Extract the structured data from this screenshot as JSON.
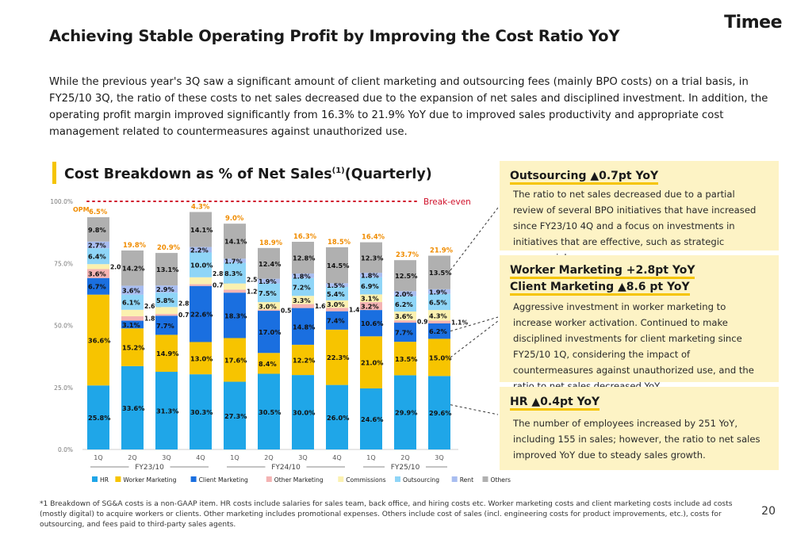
{
  "header": {
    "title": "Achieving Stable Operating Profit by Improving the Cost Ratio YoY",
    "logo": "Timee"
  },
  "intro": "While the previous year's 3Q saw a significant amount of client marketing and outsourcing fees (mainly BPO costs) on a trial basis, in FY25/10 3Q, the ratio of these costs to net sales decreased due to the expansion of net sales and disciplined investment. In addition, the operating profit margin improved significantly from 16.3% to 21.9% YoY due to improved sales productivity and appropriate cost management related to countermeasures against unauthorized use.",
  "chart_heading": {
    "text": "Cost Breakdown as % of Net Sales",
    "sup": "(1)",
    "suffix": "(Quarterly)"
  },
  "colors": {
    "HR": "#1fa6e8",
    "Worker Marketing": "#f7c400",
    "Client Marketing": "#1a6fe0",
    "Other Marketing": "#f4b3b3",
    "Commissions": "#fbf1b0",
    "Outsourcing": "#8fd5f7",
    "Rent": "#a8bdf0",
    "Others": "#b0b0b0",
    "OPM": "#f08c00",
    "BreakEven": "#d0102a"
  },
  "chart_data": {
    "type": "bar",
    "stacked": true,
    "title": "Cost Breakdown as % of Net Sales (Quarterly)",
    "categories": [
      "1Q",
      "2Q",
      "3Q",
      "4Q",
      "1Q",
      "2Q",
      "3Q",
      "4Q",
      "1Q",
      "2Q",
      "3Q"
    ],
    "groups": [
      {
        "label": "FY23/10",
        "categories": [
          "1Q",
          "2Q",
          "3Q",
          "4Q"
        ]
      },
      {
        "label": "FY24/10",
        "categories": [
          "1Q",
          "2Q",
          "3Q",
          "4Q"
        ]
      },
      {
        "label": "FY25/10",
        "categories": [
          "1Q",
          "2Q",
          "3Q"
        ]
      }
    ],
    "ylim": [
      0,
      100
    ],
    "yticks": [
      "0.0%",
      "25.0%",
      "50.0%",
      "75.0%",
      "100.0%"
    ],
    "reference_line": {
      "value": 100,
      "label": "Break-even"
    },
    "opm_label": "OPM",
    "series": [
      {
        "name": "HR",
        "values": [
          25.8,
          33.6,
          31.3,
          30.3,
          27.3,
          30.5,
          30.0,
          26.0,
          24.6,
          29.9,
          29.6
        ]
      },
      {
        "name": "Worker Marketing",
        "values": [
          36.6,
          15.2,
          14.9,
          13.0,
          17.6,
          8.4,
          12.2,
          22.3,
          21.0,
          13.5,
          15.0
        ]
      },
      {
        "name": "Client Marketing",
        "values": [
          6.7,
          3.1,
          7.7,
          22.6,
          18.3,
          17.0,
          14.8,
          7.4,
          10.6,
          7.7,
          6.2
        ]
      },
      {
        "name": "Other Marketing",
        "values": [
          3.6,
          1.8,
          0.7,
          0.7,
          1.2,
          0.5,
          1.6,
          1.4,
          3.2,
          0.9,
          1.1
        ]
      },
      {
        "name": "Commissions",
        "values": [
          2.0,
          2.6,
          2.8,
          2.8,
          2.5,
          3.0,
          3.3,
          3.0,
          3.1,
          3.6,
          4.3
        ]
      },
      {
        "name": "Outsourcing",
        "values": [
          6.4,
          6.1,
          5.8,
          10.0,
          8.3,
          7.5,
          7.2,
          5.4,
          6.9,
          6.2,
          6.5
        ]
      },
      {
        "name": "Rent",
        "values": [
          2.7,
          3.6,
          2.9,
          2.2,
          1.7,
          1.9,
          1.8,
          1.5,
          1.8,
          2.0,
          1.9
        ]
      },
      {
        "name": "Others",
        "values": [
          9.8,
          14.2,
          13.1,
          14.1,
          14.1,
          12.4,
          12.8,
          14.5,
          12.3,
          12.5,
          13.5
        ]
      }
    ],
    "opm": [
      6.5,
      19.8,
      20.9,
      4.3,
      9.0,
      18.9,
      16.3,
      18.5,
      16.4,
      23.7,
      21.9
    ],
    "legend": [
      "HR",
      "Worker Marketing",
      "Client Marketing",
      "Other Marketing",
      "Commissions",
      "Outsourcing",
      "Rent",
      "Others"
    ]
  },
  "callouts": [
    {
      "title": "Outsourcing ▲0.7pt YoY",
      "body": "The ratio to net sales decreased due to a partial review of several BPO initiatives that have increased since FY23/10 4Q and a focus on investments in initiatives that are effective, such as strategic commercial areas."
    },
    {
      "title": "Worker Marketing +2.8pt YoY",
      "title2": "Client Marketing ▲8.6 pt YoY",
      "body": "Aggressive investment in worker marketing to increase worker activation. Continued to make disciplined investments for client marketing since FY25/10 1Q, considering the impact of countermeasures against unauthorized use, and the ratio to net sales decreased YoY."
    },
    {
      "title": "HR ▲0.4pt YoY",
      "body": "The number of employees increased by 251 YoY, including 155 in sales; however, the ratio to net sales improved YoY due to steady sales growth."
    }
  ],
  "footnote": "*1  Breakdown of SG&A costs is a non-GAAP item. HR costs include salaries for sales team, back office, and hiring costs etc. Worker marketing costs and client marketing costs include ad costs (mostly digital) to acquire workers or clients. Other marketing includes promotional expenses. Others include cost of sales (incl. engineering costs for product improvements, etc.), costs for outsourcing, and fees paid to third-party sales agents.",
  "page_number": "20"
}
